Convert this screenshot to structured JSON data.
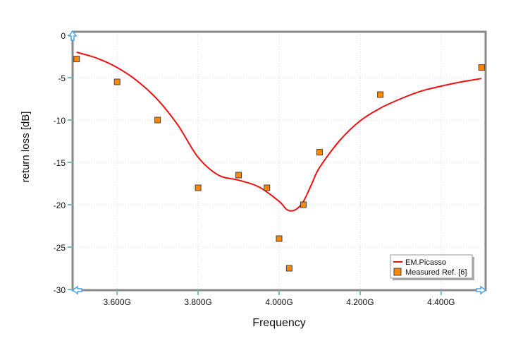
{
  "chart_data": {
    "type": "line",
    "title": "",
    "xlabel": "Frequency",
    "ylabel": "return loss [dB]",
    "xlim": [
      3.49,
      4.51
    ],
    "ylim": [
      -30,
      0
    ],
    "grid": true,
    "legend_position": "bottom-right",
    "x_ticks": [
      3.6,
      3.8,
      4.0,
      4.2,
      4.4
    ],
    "x_tick_labels": [
      "3.600G",
      "3.800G",
      "4.000G",
      "4.200G",
      "4.400G"
    ],
    "y_ticks": [
      0,
      -5,
      -10,
      -15,
      -20,
      -25,
      -30
    ],
    "y_tick_labels": [
      "0",
      "-5",
      "-10",
      "-15",
      "-20",
      "-25",
      "-30"
    ],
    "series": [
      {
        "name": "EM.Picasso",
        "kind": "line",
        "color": "#ee1111",
        "x": [
          3.5,
          3.55,
          3.6,
          3.65,
          3.7,
          3.75,
          3.8,
          3.85,
          3.9,
          3.95,
          4.0,
          4.02,
          4.04,
          4.06,
          4.08,
          4.1,
          4.15,
          4.2,
          4.25,
          4.3,
          4.35,
          4.4,
          4.45,
          4.5
        ],
        "y": [
          -2.0,
          -2.7,
          -3.8,
          -5.4,
          -7.6,
          -10.6,
          -14.4,
          -16.5,
          -17.1,
          -17.9,
          -19.6,
          -20.6,
          -20.6,
          -19.6,
          -17.6,
          -15.6,
          -12.4,
          -10.1,
          -8.6,
          -7.5,
          -6.6,
          -6.0,
          -5.5,
          -5.1
        ]
      },
      {
        "name": "Measured Ref. [6]",
        "kind": "scatter",
        "color": "#ff8800",
        "x": [
          3.5,
          3.6,
          3.7,
          3.8,
          3.9,
          3.97,
          4.0,
          4.025,
          4.06,
          4.1,
          4.25,
          4.5
        ],
        "y": [
          -2.8,
          -5.5,
          -10,
          -18,
          -16.5,
          -18,
          -24,
          -27.5,
          -20,
          -13.8,
          -7,
          -3.8
        ]
      }
    ]
  }
}
